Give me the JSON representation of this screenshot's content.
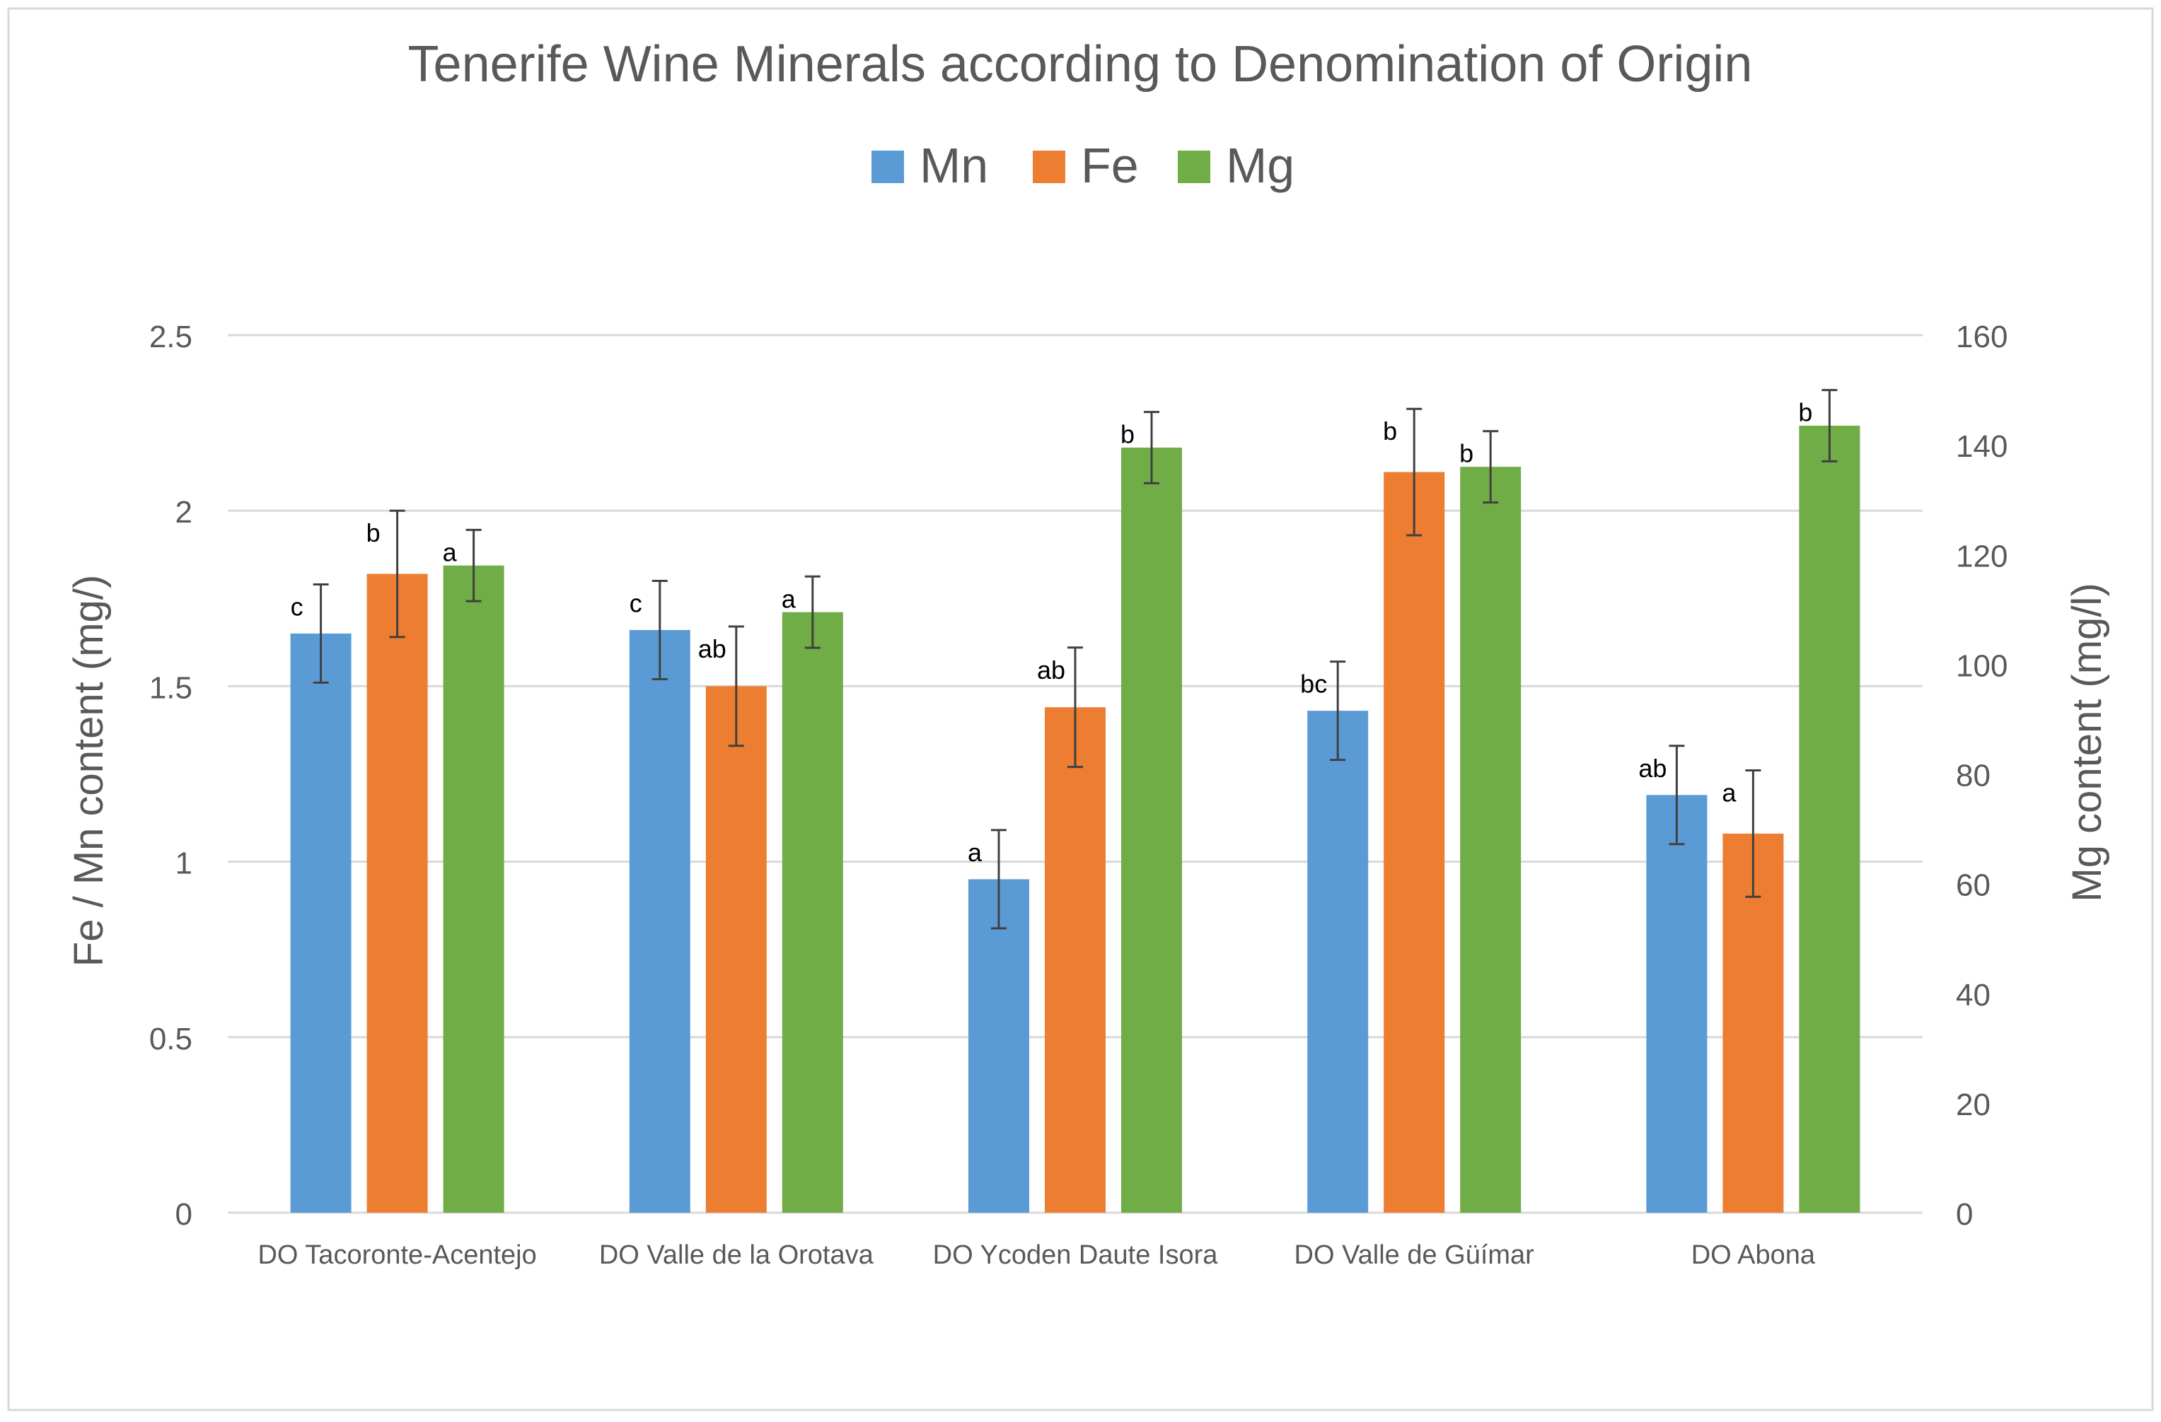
{
  "colors": {
    "Mn": "#5b9bd5",
    "Fe": "#ed7d31",
    "Mg": "#70ad47",
    "grid": "#d9d9d9",
    "text": "#595959",
    "error_bar": "#404040"
  },
  "chart_data": {
    "type": "bar",
    "title": "Tenerife Wine Minerals according to Denomination of Origin",
    "categories": [
      "DO Tacoronte-Acentejo",
      "DO Valle de la Orotava",
      "DO Ycoden Daute Isora",
      "DO Valle de Güímar",
      "DO Abona"
    ],
    "y_left": {
      "label": "Fe / Mn content (mg/)",
      "range": [
        0,
        2.5
      ],
      "ticks": [
        "0",
        "0.5",
        "1",
        "1.5",
        "2",
        "2.5"
      ]
    },
    "y_right": {
      "label": "Mg content (mg/l)",
      "range": [
        0,
        160
      ],
      "ticks": [
        "0",
        "20",
        "40",
        "60",
        "80",
        "100",
        "120",
        "140",
        "160"
      ]
    },
    "legend": {
      "position": "top"
    },
    "series": [
      {
        "name": "Mn",
        "axis": "left",
        "values": [
          1.65,
          1.66,
          0.95,
          1.43,
          1.19
        ],
        "errors": [
          0.14,
          0.14,
          0.14,
          0.14,
          0.14
        ],
        "letters": [
          "c",
          "c",
          "a",
          "bc",
          "ab"
        ]
      },
      {
        "name": "Fe",
        "axis": "left",
        "values": [
          1.82,
          1.5,
          1.44,
          2.11,
          1.08
        ],
        "errors": [
          0.18,
          0.17,
          0.17,
          0.18,
          0.18
        ],
        "letters": [
          "b",
          "ab",
          "ab",
          "b",
          "a"
        ]
      },
      {
        "name": "Mg",
        "axis": "right",
        "values": [
          118,
          109.5,
          139.5,
          136,
          143.5
        ],
        "errors": [
          6.5,
          6.5,
          6.5,
          6.5,
          6.5
        ],
        "letters": [
          "a",
          "a",
          "b",
          "b",
          "b"
        ]
      }
    ]
  }
}
